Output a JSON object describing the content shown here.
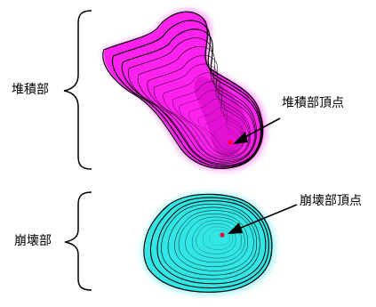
{
  "labels": {
    "deposition_zone": "堆積部",
    "deposition_apex": "堆積部頂点",
    "collapse_zone": "崩壊部",
    "collapse_apex": "崩壊部頂点"
  },
  "colors": {
    "deposition_fill": "#ff22ee",
    "deposition_core": "#e010d0",
    "collapse_fill": "#33e6e6",
    "contour_line": "#000000",
    "apex_point": "#ff0033"
  }
}
